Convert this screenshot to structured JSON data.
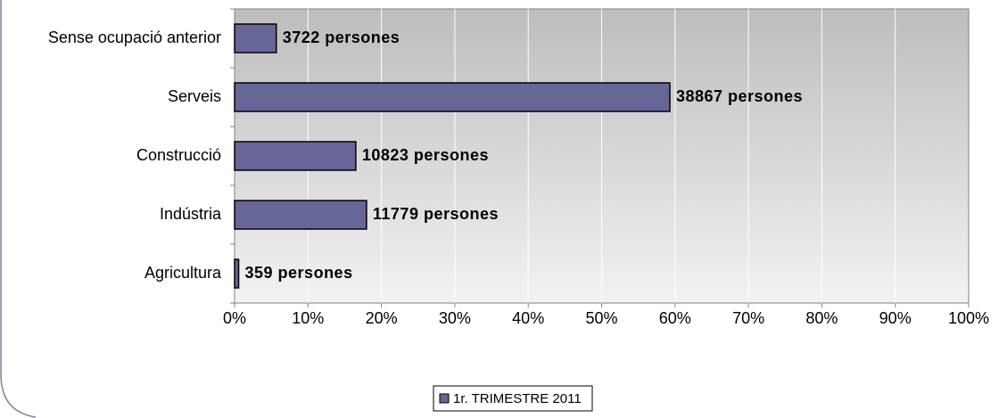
{
  "chart_data": {
    "type": "hbar",
    "categories": [
      "Sense ocupació anterior",
      "Serveis",
      "Construcció",
      "Indústria",
      "Agricultura"
    ],
    "series": [
      {
        "name": "1r. TRIMESTRE 2011",
        "color": "#666699",
        "values": [
          5.68,
          59.29,
          16.51,
          17.97,
          0.55
        ]
      }
    ],
    "annotations": [
      "3722 persones",
      "38867 persones",
      "10823 persones",
      "11779 persones",
      "359 persones"
    ],
    "xlim": [
      0,
      100
    ],
    "xticks": [
      {
        "value": 0,
        "label": "0%"
      },
      {
        "value": 10,
        "label": "10%"
      },
      {
        "value": 20,
        "label": "20%"
      },
      {
        "value": 30,
        "label": "30%"
      },
      {
        "value": 40,
        "label": "40%"
      },
      {
        "value": 50,
        "label": "50%"
      },
      {
        "value": 60,
        "label": "60%"
      },
      {
        "value": 70,
        "label": "70%"
      },
      {
        "value": 80,
        "label": "80%"
      },
      {
        "value": 90,
        "label": "90%"
      },
      {
        "value": 100,
        "label": "100%"
      }
    ],
    "grid": true,
    "legend": "bottom"
  }
}
